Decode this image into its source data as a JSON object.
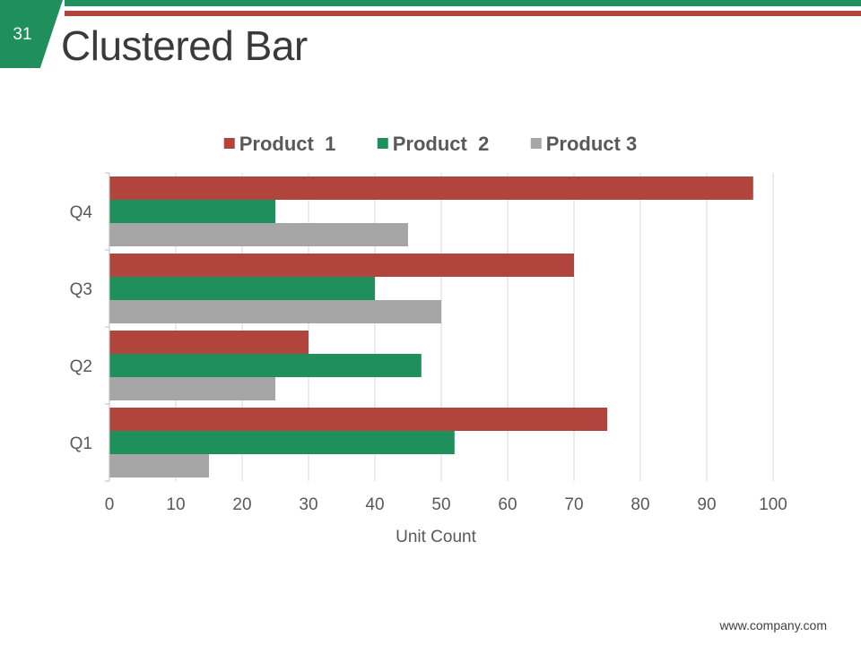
{
  "slide": {
    "number": "31",
    "title": "Clustered Bar",
    "footer": "www.company.com"
  },
  "colors": {
    "green": "#1f8f5c",
    "red": "#b2443e",
    "gray": "#a6a6a6"
  },
  "chart_data": {
    "type": "bar",
    "orientation": "horizontal",
    "title": "",
    "xlabel": "Unit Count",
    "ylabel": "",
    "xlim": [
      0,
      100
    ],
    "x_ticks": [
      0,
      10,
      20,
      30,
      40,
      50,
      60,
      70,
      80,
      90,
      100
    ],
    "grid": true,
    "legend_position": "top",
    "categories": [
      "Q1",
      "Q2",
      "Q3",
      "Q4"
    ],
    "series": [
      {
        "name": "Product  1",
        "color": "#b2443e",
        "values": [
          75,
          30,
          70,
          97
        ]
      },
      {
        "name": "Product  2",
        "color": "#1f8f5c",
        "values": [
          52,
          47,
          40,
          25
        ]
      },
      {
        "name": "Product 3",
        "color": "#a6a6a6",
        "values": [
          15,
          25,
          50,
          45
        ]
      }
    ]
  }
}
